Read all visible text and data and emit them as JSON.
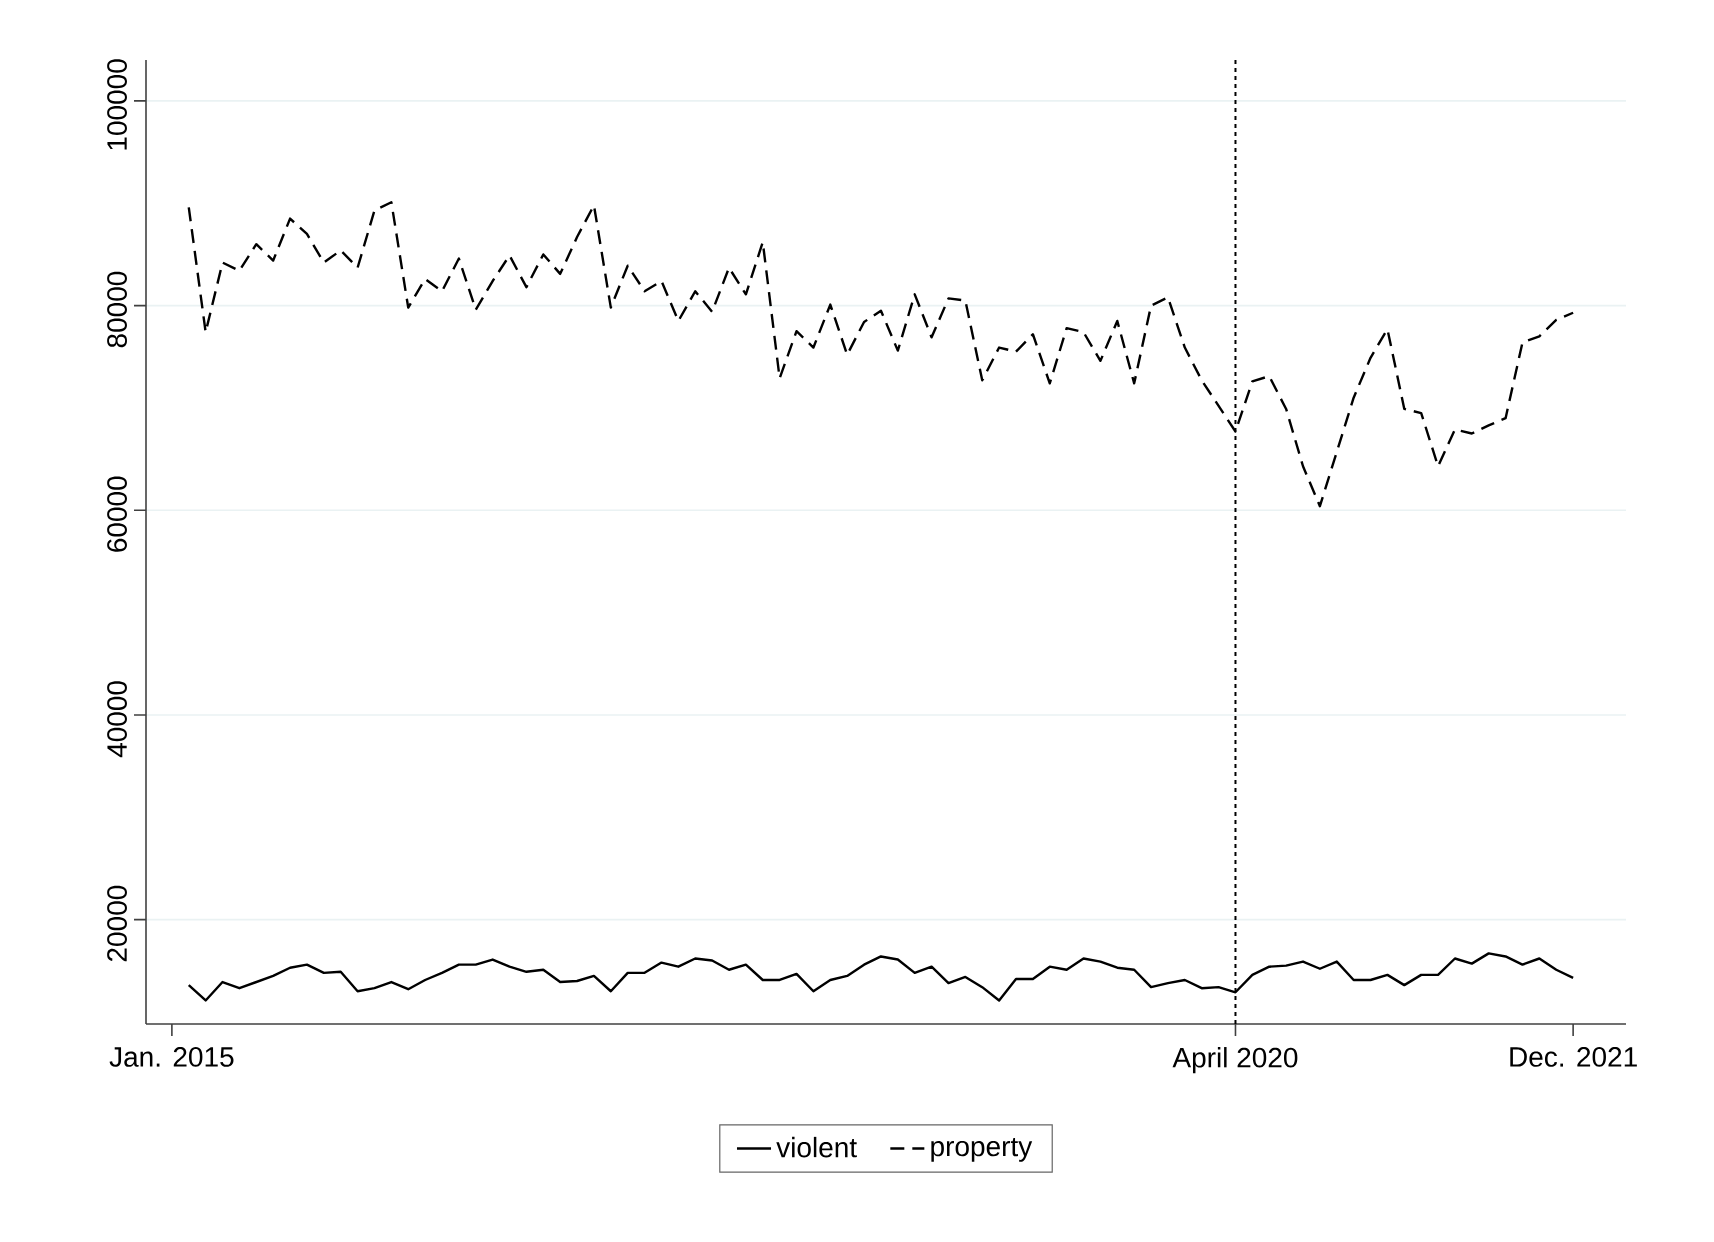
{
  "chart_data": {
    "type": "line",
    "x": [
      "2015-02",
      "2015-03",
      "2015-04",
      "2015-05",
      "2015-06",
      "2015-07",
      "2015-08",
      "2015-09",
      "2015-10",
      "2015-11",
      "2015-12",
      "2016-01",
      "2016-02",
      "2016-03",
      "2016-04",
      "2016-05",
      "2016-06",
      "2016-07",
      "2016-08",
      "2016-09",
      "2016-10",
      "2016-11",
      "2016-12",
      "2017-01",
      "2017-02",
      "2017-03",
      "2017-04",
      "2017-05",
      "2017-06",
      "2017-07",
      "2017-08",
      "2017-09",
      "2017-10",
      "2017-11",
      "2017-12",
      "2018-01",
      "2018-02",
      "2018-03",
      "2018-04",
      "2018-05",
      "2018-06",
      "2018-07",
      "2018-08",
      "2018-09",
      "2018-10",
      "2018-11",
      "2018-12",
      "2019-01",
      "2019-02",
      "2019-03",
      "2019-04",
      "2019-05",
      "2019-06",
      "2019-07",
      "2019-08",
      "2019-09",
      "2019-10",
      "2019-11",
      "2019-12",
      "2020-01",
      "2020-02",
      "2020-03",
      "2020-04",
      "2020-05",
      "2020-06",
      "2020-07",
      "2020-08",
      "2020-09",
      "2020-10",
      "2020-11",
      "2020-12",
      "2021-01",
      "2021-02",
      "2021-03",
      "2021-04",
      "2021-05",
      "2021-06",
      "2021-07",
      "2021-08",
      "2021-09",
      "2021-10",
      "2021-11",
      "2021-12"
    ],
    "series": [
      {
        "name": "violent",
        "color": "#000000",
        "line_style": "solid",
        "values": [
          13600,
          12100,
          13900,
          13300,
          13900,
          14500,
          15300,
          15600,
          14800,
          14900,
          13000,
          13300,
          13900,
          13200,
          14100,
          14800,
          15600,
          15600,
          16100,
          15400,
          14900,
          15100,
          13900,
          14000,
          14500,
          13000,
          14800,
          14800,
          15800,
          15400,
          16200,
          16000,
          15100,
          15600,
          14100,
          14100,
          14700,
          13000,
          14100,
          14500,
          15600,
          16400,
          16100,
          14800,
          15400,
          13800,
          14400,
          13400,
          12100,
          14200,
          14200,
          15400,
          15100,
          16200,
          15900,
          15300,
          15100,
          13400,
          13800,
          14100,
          13300,
          13400,
          12900,
          14600,
          15400,
          15500,
          15900,
          15200,
          15900,
          14100,
          14100,
          14600,
          13600,
          14600,
          14600,
          16200,
          15700,
          16700,
          16400,
          15600,
          16200,
          15100,
          14300
        ]
      },
      {
        "name": "property",
        "color": "#000000",
        "line_style": "dashed",
        "values": [
          89600,
          77400,
          84200,
          83400,
          86000,
          84400,
          88500,
          87000,
          84200,
          85400,
          83700,
          89300,
          90100,
          79800,
          82600,
          81400,
          84600,
          79600,
          82400,
          84900,
          81800,
          85000,
          83100,
          86700,
          89800,
          79800,
          83900,
          81400,
          82400,
          78500,
          81400,
          79400,
          83700,
          81100,
          86200,
          72900,
          77500,
          75900,
          80100,
          75200,
          78400,
          79500,
          75600,
          81100,
          76900,
          80700,
          80500,
          72700,
          75900,
          75500,
          77200,
          72400,
          77800,
          77400,
          74600,
          78500,
          72400,
          80000,
          80800,
          75900,
          72700,
          70200,
          67700,
          72600,
          73100,
          69900,
          64300,
          60400,
          65700,
          71000,
          74900,
          77700,
          69900,
          69500,
          64300,
          67900,
          67500,
          68300,
          69000,
          76400,
          77000,
          78600,
          79300
        ]
      }
    ],
    "xlim": [
      "2014-11-15",
      "2022-03-05"
    ],
    "xticks": [
      {
        "value": "2015-01",
        "label": "Jan. 2015"
      },
      {
        "value": "2020-04",
        "label": "April 2020"
      },
      {
        "value": "2021-12",
        "label": "Dec. 2021"
      }
    ],
    "ylim": [
      9800,
      104000
    ],
    "yticks": [
      20000,
      40000,
      60000,
      80000,
      100000
    ],
    "grid": "y",
    "legend": "bottom",
    "ref_lines": [
      {
        "axis": "x",
        "value": "2020-04",
        "color": "#000000",
        "line_style": "dotted"
      }
    ]
  }
}
